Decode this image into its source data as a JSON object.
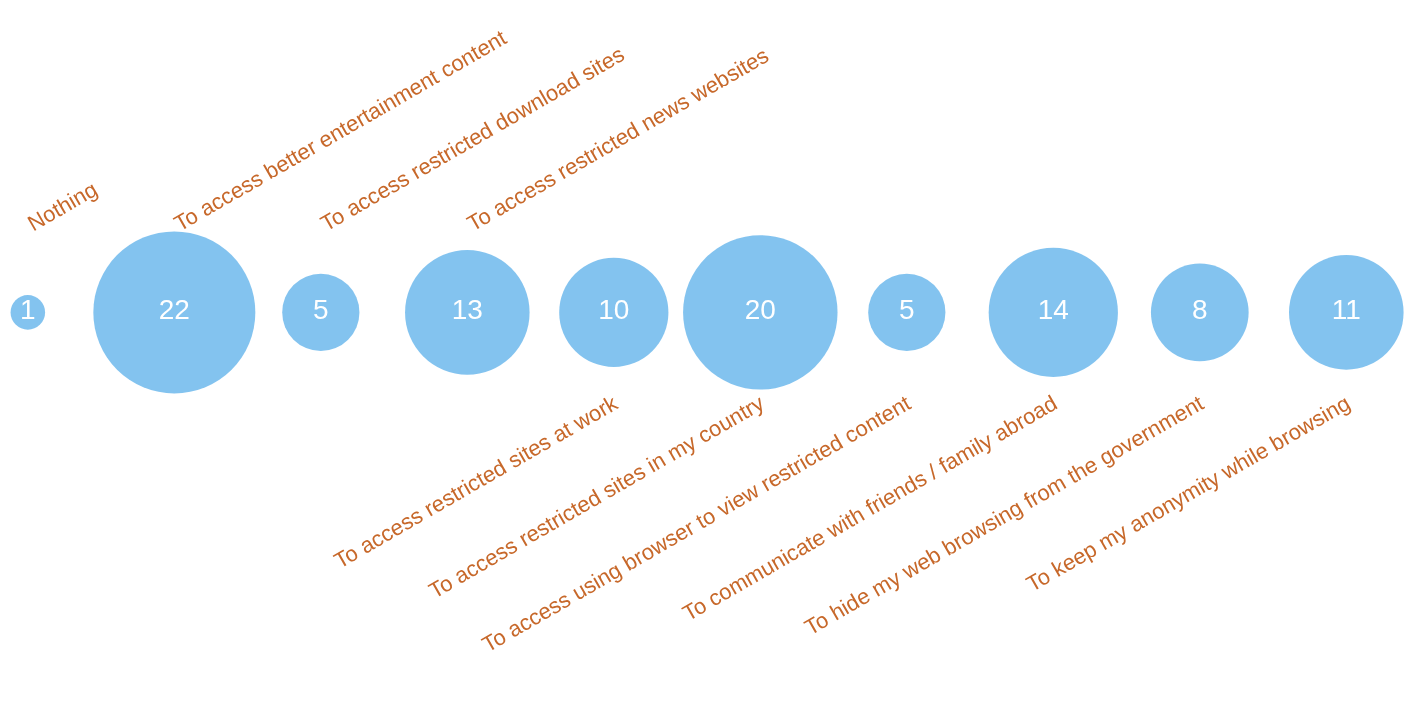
{
  "chart_data": {
    "type": "other",
    "categories": [
      "Nothing",
      "To access better entertainment content",
      "To access restricted download sites",
      "To access restricted news websites",
      "To access restricted sites at work",
      "To access restricted sites in my country",
      "To access using browser to view restricted content",
      "To communicate with friends / family abroad",
      "To hide my web browsing from the government",
      "To keep my anonymity while browsing"
    ],
    "values": [
      1,
      22,
      5,
      13,
      10,
      20,
      5,
      14,
      8,
      11
    ],
    "color": "#4eaae8",
    "data_labels": true
  }
}
